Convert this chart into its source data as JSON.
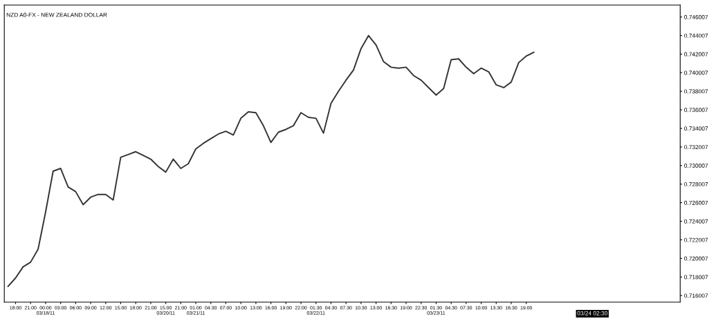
{
  "chart_data": {
    "type": "line",
    "title": "NZD A0-FX - NEW ZEALAND DOLLAR",
    "annotations": [
      "03/24 02:30"
    ],
    "categories": [
      null,
      "18:00",
      null,
      "21:00",
      null,
      "00:00\n03/18/11",
      null,
      "03:00",
      null,
      "06:00",
      null,
      "09:00",
      null,
      "12:00",
      null,
      "15:00",
      null,
      "18:00",
      null,
      "21:00",
      null,
      "15:00\n03/20/11",
      null,
      "21:00",
      null,
      "01:00\n03/21/11",
      null,
      "04:30",
      null,
      "07:00",
      null,
      "10:00",
      null,
      "13:00",
      null,
      "16:00",
      null,
      "19:00",
      null,
      "22:00",
      null,
      "01:30\n03/22/11",
      null,
      "04:30",
      null,
      "07:30",
      null,
      "10:30",
      null,
      "13:00",
      null,
      "16:30",
      null,
      "19:00",
      null,
      "22:30",
      null,
      "01:30\n03/23/11",
      null,
      "04:30",
      null,
      "07:30",
      null,
      "10:00",
      null,
      "13:30",
      null,
      "16:30",
      null,
      "19:00",
      null,
      null,
      null,
      null,
      null,
      null,
      null,
      null,
      null,
      null,
      null,
      null,
      null,
      null,
      null,
      null,
      null,
      null,
      null,
      null
    ],
    "series": [
      {
        "color": "#333333",
        "values": [
          0.717,
          0.7179,
          0.7191,
          0.7196,
          0.721,
          0.725,
          0.7294,
          0.7297,
          0.7277,
          0.7272,
          0.7258,
          0.7266,
          0.7269,
          0.7269,
          0.7263,
          0.7309,
          0.7312,
          0.7315,
          0.7311,
          0.7307,
          0.7299,
          0.7293,
          0.7307,
          0.7297,
          0.7302,
          0.7318,
          0.7324,
          0.7329,
          0.7334,
          0.7337,
          0.7333,
          0.7351,
          0.7358,
          0.7357,
          0.7343,
          0.7325,
          0.7336,
          0.7339,
          0.7343,
          0.7357,
          0.7352,
          0.7351,
          0.7335,
          0.7367,
          0.738,
          0.7392,
          0.7403,
          0.7426,
          0.744,
          0.743,
          0.7412,
          0.7406,
          0.7405,
          0.7406,
          0.7397,
          0.7392,
          0.7384,
          0.7376,
          0.7383,
          0.7414,
          0.7415,
          0.7406,
          0.7399,
          0.7405,
          0.7401,
          0.7387,
          0.7384,
          0.739,
          0.7411,
          0.7418,
          0.7422,
          null,
          null,
          null,
          null,
          null,
          null,
          null,
          null,
          null,
          null,
          null,
          null,
          null,
          null,
          null,
          null,
          null,
          null,
          null
        ]
      }
    ],
    "ylim": [
      0.7153,
      0.7473
    ],
    "yticks": [
      0.716007,
      0.718007,
      0.720007,
      0.722007,
      0.724007,
      0.726007,
      0.728007,
      0.730007,
      0.732007,
      0.734007,
      0.736007,
      0.738007,
      0.740007,
      0.742007,
      0.744007,
      0.746007
    ],
    "grid": false,
    "legend": false
  }
}
